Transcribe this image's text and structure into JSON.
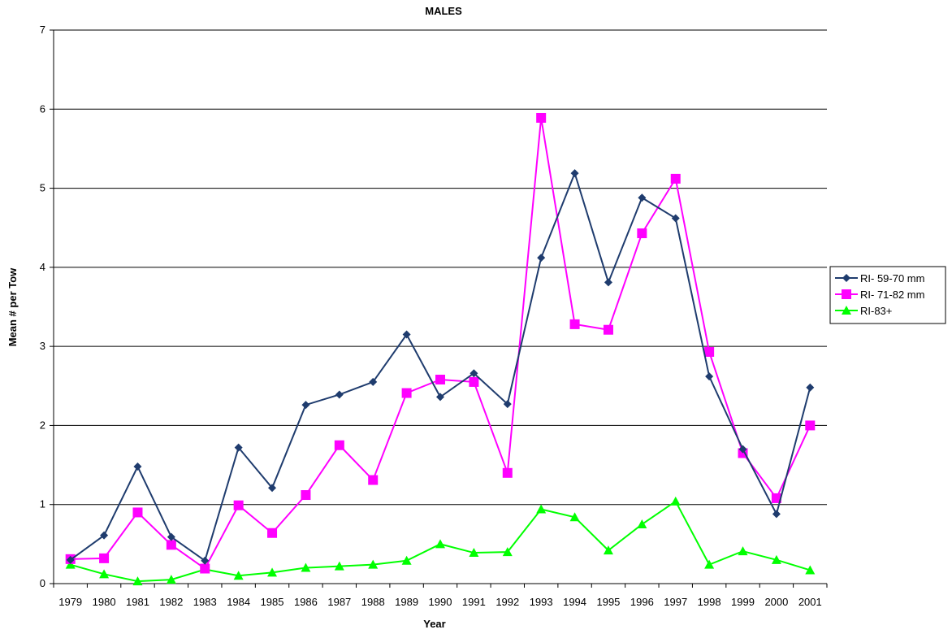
{
  "chart_data": {
    "type": "line",
    "title": "MALES",
    "xlabel": "Year",
    "ylabel": "Mean # per Tow",
    "ylim": [
      0,
      7
    ],
    "yticks": [
      0,
      1,
      2,
      3,
      4,
      5,
      6,
      7
    ],
    "grid": true,
    "legend_position": "right",
    "categories": [
      "1979",
      "1980",
      "1981",
      "1982",
      "1983",
      "1984",
      "1985",
      "1986",
      "1987",
      "1988",
      "1989",
      "1990",
      "1991",
      "1992",
      "1993",
      "1994",
      "1995",
      "1996",
      "1997",
      "1998",
      "1999",
      "2000",
      "2001"
    ],
    "series": [
      {
        "name": "RI- 59-70 mm",
        "color": "#1f3c6e",
        "marker": "diamond",
        "values": [
          0.3,
          0.61,
          1.48,
          0.59,
          0.29,
          1.72,
          1.21,
          2.26,
          2.39,
          2.55,
          3.15,
          2.36,
          2.66,
          2.27,
          4.12,
          5.19,
          3.81,
          4.88,
          4.62,
          2.62,
          1.7,
          0.88,
          2.48
        ]
      },
      {
        "name": "RI- 71-82 mm",
        "color": "#ff00ff",
        "marker": "square",
        "values": [
          0.31,
          0.32,
          0.9,
          0.49,
          0.19,
          0.99,
          0.64,
          1.12,
          1.75,
          1.31,
          2.41,
          2.58,
          2.55,
          1.4,
          5.89,
          3.28,
          3.21,
          4.43,
          5.12,
          2.93,
          1.65,
          1.08,
          2.0
        ]
      },
      {
        "name": "RI-83+",
        "color": "#00ff00",
        "marker": "triangle",
        "values": [
          0.24,
          0.12,
          0.03,
          0.05,
          0.18,
          0.1,
          0.14,
          0.2,
          0.22,
          0.24,
          0.29,
          0.5,
          0.39,
          0.4,
          0.94,
          0.84,
          0.42,
          0.75,
          1.04,
          0.24,
          0.41,
          0.3,
          0.17
        ]
      }
    ]
  }
}
